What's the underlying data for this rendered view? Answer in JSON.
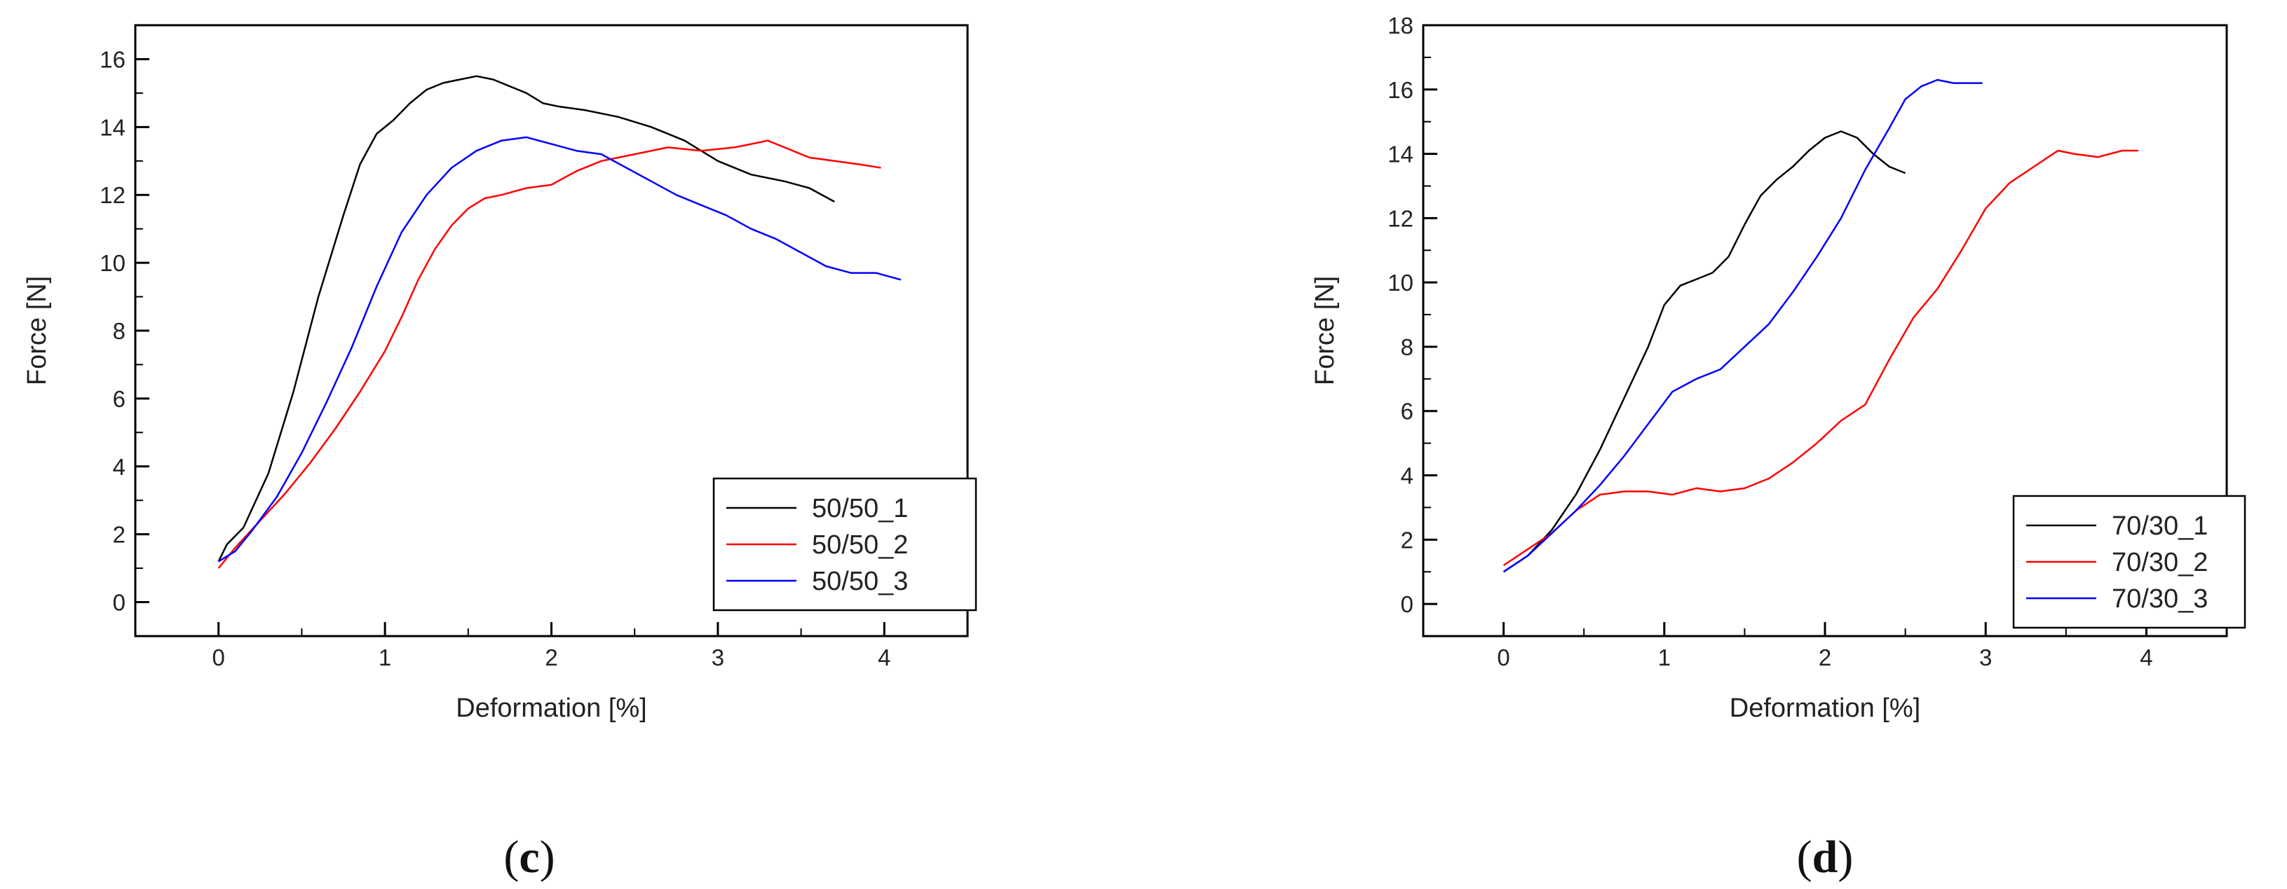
{
  "chart_data": [
    {
      "type": "line",
      "panel_label": "c",
      "caption_text": "(c)",
      "title": "",
      "xlabel": "Deformation [%]",
      "ylabel": "Force [N]",
      "xlim": [
        -0.5,
        4.5
      ],
      "ylim": [
        -1,
        17
      ],
      "x_ticks": [
        0,
        1,
        2,
        3,
        4
      ],
      "x_tick_labels": [
        "0",
        "1",
        "2",
        "3",
        "4"
      ],
      "y_ticks": [
        0,
        2,
        4,
        6,
        8,
        10,
        12,
        14,
        16
      ],
      "y_tick_labels": [
        "0",
        "2",
        "4",
        "6",
        "8",
        "10",
        "12",
        "14",
        "16"
      ],
      "grid": false,
      "legend_position": "bottom-right",
      "series": [
        {
          "name": "50/50_1",
          "color": "#000000",
          "x": [
            0,
            0.05,
            0.15,
            0.3,
            0.45,
            0.6,
            0.75,
            0.85,
            0.95,
            1.05,
            1.15,
            1.25,
            1.35,
            1.45,
            1.55,
            1.65,
            1.75,
            1.85,
            1.95,
            2.05,
            2.2,
            2.4,
            2.6,
            2.8,
            3.0,
            3.2,
            3.4,
            3.55,
            3.7
          ],
          "y": [
            1.2,
            1.7,
            2.2,
            3.8,
            6.2,
            9.0,
            11.4,
            12.9,
            13.8,
            14.2,
            14.7,
            15.1,
            15.3,
            15.4,
            15.5,
            15.4,
            15.2,
            15.0,
            14.7,
            14.6,
            14.5,
            14.3,
            14.0,
            13.6,
            13.0,
            12.6,
            12.4,
            12.2,
            11.8
          ]
        },
        {
          "name": "50/50_2",
          "color": "#ff0000",
          "x": [
            0,
            0.1,
            0.25,
            0.4,
            0.55,
            0.7,
            0.85,
            1.0,
            1.1,
            1.2,
            1.3,
            1.4,
            1.5,
            1.6,
            1.7,
            1.85,
            2.0,
            2.15,
            2.3,
            2.5,
            2.7,
            2.9,
            3.1,
            3.2,
            3.3,
            3.4,
            3.55,
            3.7,
            3.85,
            3.98
          ],
          "y": [
            1.0,
            1.6,
            2.4,
            3.2,
            4.1,
            5.1,
            6.2,
            7.4,
            8.4,
            9.5,
            10.4,
            11.1,
            11.6,
            11.9,
            12.0,
            12.2,
            12.3,
            12.7,
            13.0,
            13.2,
            13.4,
            13.3,
            13.4,
            13.5,
            13.6,
            13.4,
            13.1,
            13.0,
            12.9,
            12.8
          ]
        },
        {
          "name": "50/50_3",
          "color": "#0000ff",
          "x": [
            0,
            0.1,
            0.2,
            0.35,
            0.5,
            0.65,
            0.8,
            0.95,
            1.1,
            1.25,
            1.4,
            1.55,
            1.7,
            1.85,
            2.0,
            2.15,
            2.3,
            2.45,
            2.6,
            2.75,
            2.9,
            3.05,
            3.2,
            3.35,
            3.5,
            3.65,
            3.8,
            3.95,
            4.1
          ],
          "y": [
            1.2,
            1.5,
            2.1,
            3.1,
            4.4,
            5.9,
            7.5,
            9.3,
            10.9,
            12.0,
            12.8,
            13.3,
            13.6,
            13.7,
            13.5,
            13.3,
            13.2,
            12.8,
            12.4,
            12.0,
            11.7,
            11.4,
            11.0,
            10.7,
            10.3,
            9.9,
            9.7,
            9.7,
            9.5
          ]
        }
      ]
    },
    {
      "type": "line",
      "panel_label": "d",
      "caption_text": "(d)",
      "title": "",
      "xlabel": "Deformation [%]",
      "ylabel": "Force [N]",
      "xlim": [
        -0.5,
        4.5
      ],
      "ylim": [
        -1,
        18
      ],
      "x_ticks": [
        0,
        1,
        2,
        3,
        4
      ],
      "x_tick_labels": [
        "0",
        "1",
        "2",
        "3",
        "4"
      ],
      "y_ticks": [
        0,
        2,
        4,
        6,
        8,
        10,
        12,
        14,
        16,
        18
      ],
      "y_tick_labels": [
        "0",
        "2",
        "4",
        "6",
        "8",
        "10",
        "12",
        "14",
        "16",
        "18"
      ],
      "grid": false,
      "legend_position": "bottom-right",
      "series": [
        {
          "name": "70/30_1",
          "color": "#000000",
          "x": [
            0,
            0.15,
            0.3,
            0.45,
            0.6,
            0.75,
            0.9,
            1.0,
            1.1,
            1.2,
            1.3,
            1.4,
            1.5,
            1.6,
            1.7,
            1.8,
            1.9,
            2.0,
            2.1,
            2.2,
            2.3,
            2.4,
            2.5
          ],
          "y": [
            1.0,
            1.5,
            2.3,
            3.4,
            4.8,
            6.4,
            8.0,
            9.3,
            9.9,
            10.1,
            10.3,
            10.8,
            11.8,
            12.7,
            13.2,
            13.6,
            14.1,
            14.5,
            14.7,
            14.5,
            14.0,
            13.6,
            13.4
          ]
        },
        {
          "name": "70/30_2",
          "color": "#ff0000",
          "x": [
            0,
            0.15,
            0.3,
            0.45,
            0.6,
            0.75,
            0.9,
            1.05,
            1.2,
            1.35,
            1.5,
            1.65,
            1.8,
            1.95,
            2.1,
            2.25,
            2.4,
            2.55,
            2.7,
            2.85,
            3.0,
            3.15,
            3.3,
            3.45,
            3.55,
            3.7,
            3.85,
            3.95
          ],
          "y": [
            1.2,
            1.7,
            2.2,
            2.9,
            3.4,
            3.5,
            3.5,
            3.4,
            3.6,
            3.5,
            3.6,
            3.9,
            4.4,
            5.0,
            5.7,
            6.2,
            7.6,
            8.9,
            9.8,
            11.0,
            12.3,
            13.1,
            13.6,
            14.1,
            14.0,
            13.9,
            14.1,
            14.1
          ]
        },
        {
          "name": "70/30_3",
          "color": "#0000ff",
          "x": [
            0,
            0.15,
            0.3,
            0.45,
            0.6,
            0.75,
            0.9,
            1.05,
            1.2,
            1.35,
            1.5,
            1.65,
            1.8,
            1.95,
            2.1,
            2.25,
            2.4,
            2.5,
            2.6,
            2.7,
            2.8,
            2.9,
            2.98
          ],
          "y": [
            1.0,
            1.5,
            2.2,
            2.9,
            3.7,
            4.6,
            5.6,
            6.6,
            7.0,
            7.3,
            8.0,
            8.7,
            9.7,
            10.8,
            12.0,
            13.5,
            14.8,
            15.7,
            16.1,
            16.3,
            16.2,
            16.2,
            16.2
          ]
        }
      ]
    }
  ]
}
